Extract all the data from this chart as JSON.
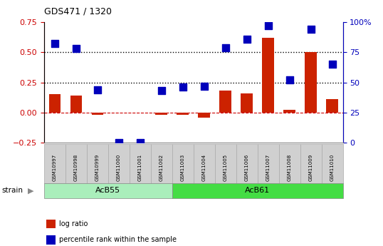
{
  "title": "GDS471 / 1320",
  "samples": [
    "GSM10997",
    "GSM10998",
    "GSM10999",
    "GSM11000",
    "GSM11001",
    "GSM11002",
    "GSM11003",
    "GSM11004",
    "GSM11005",
    "GSM11006",
    "GSM11007",
    "GSM11008",
    "GSM11009",
    "GSM11010"
  ],
  "log_ratio": [
    0.15,
    0.14,
    -0.02,
    0.0,
    0.0,
    -0.02,
    -0.02,
    -0.04,
    0.18,
    0.16,
    0.62,
    0.02,
    0.5,
    0.11
  ],
  "percentile_rank": [
    82,
    78,
    44,
    0,
    0,
    43,
    46,
    47,
    79,
    86,
    97,
    52,
    94,
    65
  ],
  "groups": [
    {
      "label": "AcB55",
      "start": 0,
      "end": 5,
      "color": "#aaeebb"
    },
    {
      "label": "AcB61",
      "start": 6,
      "end": 13,
      "color": "#44dd44"
    }
  ],
  "group_label_prefix": "strain",
  "ylim_left": [
    -0.25,
    0.75
  ],
  "ylim_right": [
    0,
    100
  ],
  "yticks_left": [
    -0.25,
    0,
    0.25,
    0.5,
    0.75
  ],
  "yticks_right": [
    0,
    25,
    50,
    75,
    100
  ],
  "hlines": [
    0.0,
    0.25,
    0.5
  ],
  "hline_styles": [
    "dashed",
    "dotted",
    "dotted"
  ],
  "hline_colors": [
    "#cc0000",
    "#000000",
    "#000000"
  ],
  "bar_color": "#cc2200",
  "dot_color": "#0000bb",
  "bar_width": 0.55,
  "dot_size": 45,
  "left_tick_color": "#cc0000",
  "right_tick_color": "#0000bb",
  "background_color": "#ffffff",
  "plot_bg_color": "#ffffff",
  "legend_items": [
    {
      "label": "log ratio",
      "color": "#cc2200"
    },
    {
      "label": "percentile rank within the sample",
      "color": "#0000bb"
    }
  ],
  "sample_box_color": "#d0d0d0",
  "sample_box_edge_color": "#aaaaaa"
}
